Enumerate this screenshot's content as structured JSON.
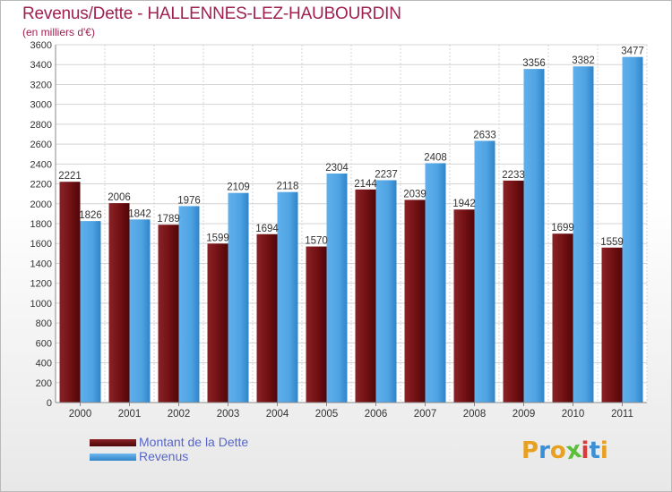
{
  "header": {
    "title": "Revenus/Dette - HALLENNES-LEZ-HAUBOURDIN",
    "subtitle": "(en milliers d'€)"
  },
  "chart_data": {
    "type": "bar",
    "title": "Revenus/Dette - HALLENNES-LEZ-HAUBOURDIN",
    "subtitle": "(en milliers d'€)",
    "categories": [
      "2000",
      "2001",
      "2002",
      "2003",
      "2004",
      "2005",
      "2006",
      "2007",
      "2008",
      "2009",
      "2010",
      "2011"
    ],
    "series": [
      {
        "name": "Montant de la Dette",
        "color": "#6e0f12",
        "values": [
          2221,
          2006,
          1789,
          1599,
          1694,
          1570,
          2144,
          2039,
          1942,
          2233,
          1699,
          1559
        ]
      },
      {
        "name": "Revenus",
        "color": "#4fa3e2",
        "values": [
          1826,
          1842,
          1976,
          2109,
          2118,
          2304,
          2237,
          2408,
          2633,
          3356,
          3382,
          3477
        ]
      }
    ],
    "ylim": [
      0,
      3600
    ],
    "yticks": [
      0,
      200,
      400,
      600,
      800,
      1000,
      1200,
      1400,
      1600,
      1800,
      2000,
      2200,
      2400,
      2600,
      2800,
      3000,
      3200,
      3400,
      3600
    ],
    "grid": true,
    "legend_position": "bottom-left"
  },
  "legend": {
    "items": [
      {
        "label": "Montant de la Dette",
        "color": "#6e0f12"
      },
      {
        "label": "Revenus",
        "color": "#4fa3e2"
      }
    ]
  },
  "logo": {
    "text": "Proxiti",
    "colors": [
      "#e8a020",
      "#3a8fd6",
      "#e8a020",
      "#5bbf3a",
      "#d93a3a",
      "#3a8fd6",
      "#e8a020"
    ]
  }
}
